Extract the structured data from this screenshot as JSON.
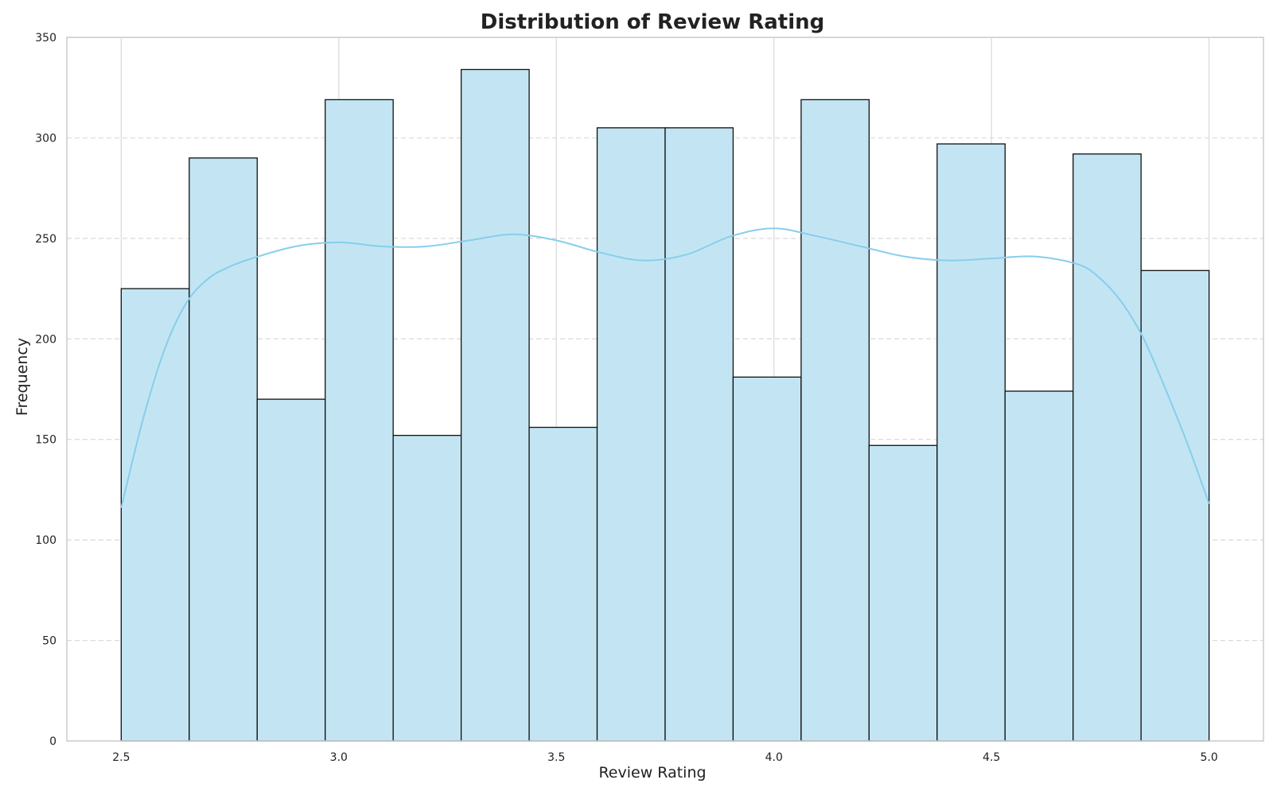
{
  "chart_data": {
    "type": "bar",
    "title": "Distribution of Review Rating",
    "xlabel": "Review Rating",
    "ylabel": "Frequency",
    "xlim": [
      2.375,
      5.125
    ],
    "ylim": [
      0,
      350
    ],
    "bins": [
      {
        "x0": 2.5,
        "x1": 2.65625,
        "count": 225
      },
      {
        "x0": 2.65625,
        "x1": 2.8125,
        "count": 290
      },
      {
        "x0": 2.8125,
        "x1": 2.96875,
        "count": 170
      },
      {
        "x0": 2.96875,
        "x1": 3.125,
        "count": 319
      },
      {
        "x0": 3.125,
        "x1": 3.28125,
        "count": 152
      },
      {
        "x0": 3.28125,
        "x1": 3.4375,
        "count": 334
      },
      {
        "x0": 3.4375,
        "x1": 3.59375,
        "count": 156
      },
      {
        "x0": 3.59375,
        "x1": 3.75,
        "count": 305
      },
      {
        "x0": 3.75,
        "x1": 3.90625,
        "count": 305
      },
      {
        "x0": 3.90625,
        "x1": 4.0625,
        "count": 181
      },
      {
        "x0": 4.0625,
        "x1": 4.21875,
        "count": 319
      },
      {
        "x0": 4.21875,
        "x1": 4.375,
        "count": 147
      },
      {
        "x0": 4.375,
        "x1": 4.53125,
        "count": 297
      },
      {
        "x0": 4.53125,
        "x1": 4.6875,
        "count": 174
      },
      {
        "x0": 4.6875,
        "x1": 4.84375,
        "count": 292
      },
      {
        "x0": 4.84375,
        "x1": 5.0,
        "count": 234
      }
    ],
    "kde": {
      "x": [
        2.5,
        2.55,
        2.6,
        2.65,
        2.7,
        2.75,
        2.8,
        2.9,
        3.0,
        3.1,
        3.2,
        3.3,
        3.4,
        3.5,
        3.6,
        3.7,
        3.8,
        3.9,
        4.0,
        4.1,
        4.2,
        4.3,
        4.4,
        4.5,
        4.6,
        4.7,
        4.75,
        4.8,
        4.85,
        4.9,
        4.95,
        5.0
      ],
      "y": [
        116,
        160,
        195,
        218,
        230,
        236,
        240,
        246,
        248,
        246,
        246,
        249,
        252,
        249,
        243,
        239,
        242,
        251,
        255,
        251,
        246,
        241,
        239,
        240,
        241,
        237,
        230,
        218,
        200,
        175,
        148,
        118
      ]
    },
    "xticks": [
      2.5,
      3.0,
      3.5,
      4.0,
      4.5,
      5.0
    ],
    "xtick_labels": [
      "2.5",
      "3.0",
      "3.5",
      "4.0",
      "4.5",
      "5.0"
    ],
    "yticks": [
      0,
      50,
      100,
      150,
      200,
      250,
      300,
      350
    ],
    "ytick_labels": [
      "0",
      "50",
      "100",
      "150",
      "200",
      "250",
      "300",
      "350"
    ],
    "grid": true,
    "colors": {
      "bar_fill": "#c3e5f3",
      "bar_edge": "#111111",
      "kde_line": "#87ceeb",
      "grid": "#d9d9d9",
      "spine": "#cccccc"
    }
  }
}
